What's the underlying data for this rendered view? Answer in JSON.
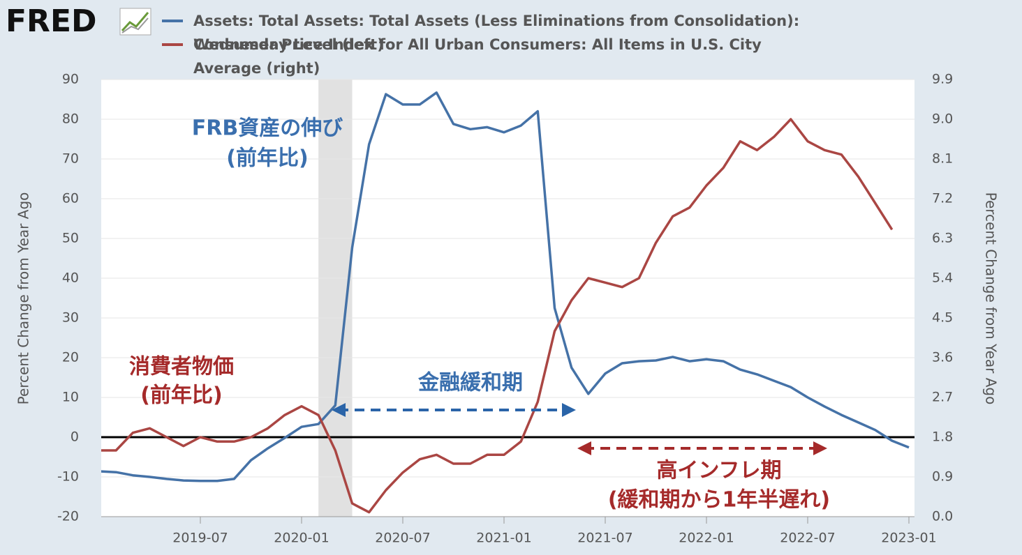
{
  "chart_data": {
    "type": "line",
    "logo": "FRED",
    "x": [
      "2019-01",
      "2019-02",
      "2019-03",
      "2019-04",
      "2019-05",
      "2019-06",
      "2019-07",
      "2019-08",
      "2019-09",
      "2019-10",
      "2019-11",
      "2019-12",
      "2020-01",
      "2020-02",
      "2020-03",
      "2020-04",
      "2020-05",
      "2020-06",
      "2020-07",
      "2020-08",
      "2020-09",
      "2020-10",
      "2020-11",
      "2020-12",
      "2021-01",
      "2021-02",
      "2021-03",
      "2021-04",
      "2021-05",
      "2021-06",
      "2021-07",
      "2021-08",
      "2021-09",
      "2021-10",
      "2021-11",
      "2021-12",
      "2022-01",
      "2022-02",
      "2022-03",
      "2022-04",
      "2022-05",
      "2022-06",
      "2022-07",
      "2022-08",
      "2022-09",
      "2022-10",
      "2022-11",
      "2022-12",
      "2023-01"
    ],
    "series": [
      {
        "name": "Assets: Total Assets: Total Assets (Less Eliminations from Consolidation): Wednesday Level (left)",
        "color": "#4572a7",
        "axis": "y",
        "values": [
          -8.6,
          -8.8,
          -9.6,
          -10,
          -10.5,
          -10.9,
          -11,
          -11,
          -10.5,
          -5.8,
          -2.8,
          -0.2,
          2.6,
          3.3,
          8,
          47.7,
          73.7,
          86.3,
          83.7,
          83.7,
          86.7,
          78.8,
          77.5,
          78,
          76.7,
          78.4,
          82,
          32.5,
          17.5,
          10.9,
          16,
          18.6,
          19.1,
          19.3,
          20.2,
          19.1,
          19.6,
          19.1,
          17,
          15.8,
          14.2,
          12.6,
          10,
          7.7,
          5.6,
          3.7,
          1.8,
          -0.9,
          -2.6
        ]
      },
      {
        "name": "Consumer Price Index for All Urban Consumers: All Items in U.S. City Average (right)",
        "color": "#aa4643",
        "axis": "y2",
        "values": [
          1.5,
          1.5,
          1.9,
          2.0,
          1.8,
          1.6,
          1.8,
          1.7,
          1.7,
          1.8,
          2.0,
          2.3,
          2.5,
          2.3,
          1.5,
          0.3,
          0.1,
          0.6,
          1.0,
          1.3,
          1.4,
          1.2,
          1.2,
          1.4,
          1.4,
          1.7,
          2.6,
          4.2,
          4.9,
          5.4,
          5.3,
          5.2,
          5.4,
          6.2,
          6.8,
          7.0,
          7.5,
          7.9,
          8.5,
          8.3,
          8.6,
          9.0,
          8.5,
          8.3,
          8.2,
          7.7,
          7.1,
          6.5,
          null
        ]
      }
    ],
    "xlim": [
      "2019-01",
      "2023-01"
    ],
    "xticks": [
      "2019-07",
      "2020-01",
      "2020-07",
      "2021-01",
      "2021-07",
      "2022-01",
      "2022-07",
      "2023-01"
    ],
    "ylim": [
      -20,
      90
    ],
    "yticks": [
      90,
      80,
      70,
      60,
      50,
      40,
      30,
      20,
      10,
      0,
      -10,
      -20
    ],
    "y2lim": [
      0,
      9.9
    ],
    "y2ticks": [
      9.9,
      {
        "value": 9,
        "label": "9.0"
      },
      8.1,
      7.2,
      6.3,
      5.4,
      4.5,
      3.6,
      2.7,
      1.8,
      0.9,
      {
        "value": 0,
        "label": "0.0"
      }
    ],
    "ylabel": "Percent Change from Year Ago",
    "y2label": "Percent Change from Year Ago",
    "grid": true,
    "zero_line": 0,
    "recessions": [
      {
        "start": "2020-02",
        "end": "2020-04"
      }
    ],
    "annotations": [
      {
        "lines": [
          "FRB資産の伸び",
          "(前年比)"
        ],
        "color": "#3a6fae"
      },
      {
        "lines": [
          "消費者物価",
          "(前年比)"
        ],
        "color": "#a52a2a"
      },
      {
        "lines": [
          "金融緩和期"
        ],
        "color": "#3a6fae"
      },
      {
        "lines": [
          "高インフレ期",
          "(緩和期から1年半遅れ)"
        ],
        "color": "#a52a2a"
      }
    ]
  }
}
